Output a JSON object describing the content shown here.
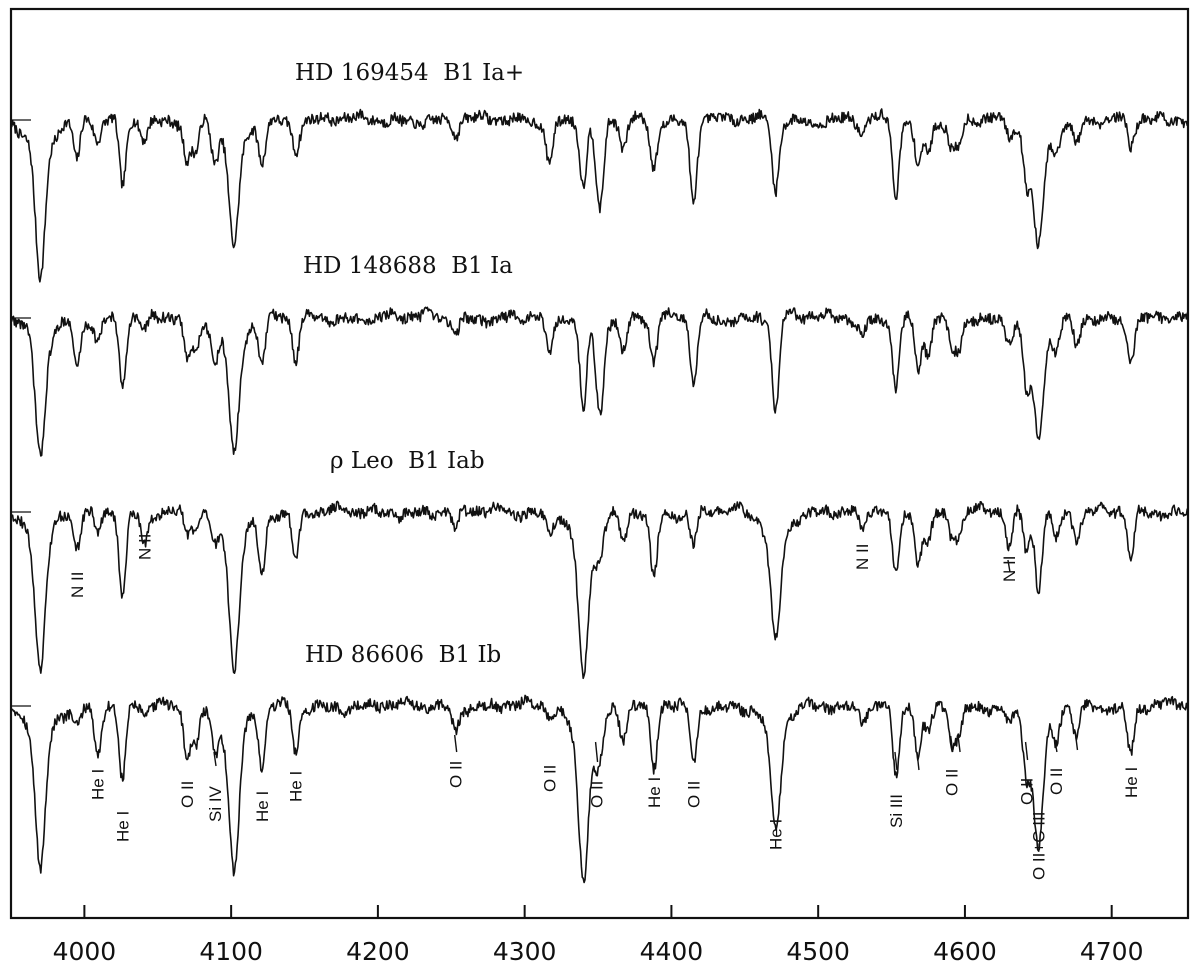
{
  "chart_data": {
    "type": "line",
    "x_unit": "wavelength (Å)",
    "xlim": [
      3950,
      4752
    ],
    "xticks": [
      4000,
      4100,
      4200,
      4300,
      4400,
      4500,
      4600,
      4700
    ],
    "xtick_labels": [
      "4000",
      "4100",
      "4200",
      "4300",
      "4400",
      "4500",
      "4600",
      "4700"
    ],
    "grid": false,
    "series": [
      {
        "name": "HD 169454  B1 Ia+"
      },
      {
        "name": "HD 148688  B1 Ia"
      },
      {
        "name": "ρ Leo  B1 Iab"
      },
      {
        "name": "HD 86606  B1 Ib"
      }
    ],
    "absorption_lines": [
      {
        "wl": 3970,
        "depth": [
          0.55,
          0.48,
          0.55,
          0.58
        ]
      },
      {
        "wl": 3995,
        "depth": [
          0.18,
          0.2,
          0.16,
          0.08
        ]
      },
      {
        "wl": 4009,
        "depth": [
          0.1,
          0.1,
          0.1,
          0.2
        ]
      },
      {
        "wl": 4026,
        "depth": [
          0.28,
          0.28,
          0.35,
          0.33
        ]
      },
      {
        "wl": 4041,
        "depth": [
          0.07,
          0.07,
          0.13,
          0.05
        ]
      },
      {
        "wl": 4070,
        "depth": [
          0.18,
          0.18,
          0.09,
          0.2
        ]
      },
      {
        "wl": 4076,
        "depth": [
          0.14,
          0.13,
          0.08,
          0.16
        ]
      },
      {
        "wl": 4089,
        "depth": [
          0.15,
          0.15,
          0.12,
          0.16
        ]
      },
      {
        "wl": 4102,
        "depth": [
          0.45,
          0.47,
          0.55,
          0.58
        ]
      },
      {
        "wl": 4121,
        "depth": [
          0.16,
          0.2,
          0.25,
          0.25
        ]
      },
      {
        "wl": 4144,
        "depth": [
          0.12,
          0.18,
          0.2,
          0.2
        ]
      },
      {
        "wl": 4253,
        "depth": [
          0.06,
          0.06,
          0.08,
          0.1
        ]
      },
      {
        "wl": 4317,
        "depth": [
          0.18,
          0.18,
          0.07,
          0.05
        ]
      },
      {
        "wl": 4340,
        "depth": [
          0.28,
          0.4,
          0.58,
          0.6
        ]
      },
      {
        "wl": 4349,
        "depth": [
          0.13,
          0.14,
          0.1,
          0.14
        ]
      },
      {
        "wl": 4352,
        "depth": [
          0.33,
          0.33,
          0.1,
          0.1
        ]
      },
      {
        "wl": 4367,
        "depth": [
          0.13,
          0.14,
          0.14,
          0.13
        ]
      },
      {
        "wl": 4388,
        "depth": [
          0.2,
          0.2,
          0.28,
          0.28
        ]
      },
      {
        "wl": 4415,
        "depth": [
          0.35,
          0.28,
          0.14,
          0.25
        ]
      },
      {
        "wl": 4471,
        "depth": [
          0.3,
          0.4,
          0.44,
          0.44
        ]
      },
      {
        "wl": 4530,
        "depth": [
          0.07,
          0.07,
          0.1,
          0.05
        ]
      },
      {
        "wl": 4553,
        "depth": [
          0.32,
          0.3,
          0.28,
          0.3
        ]
      },
      {
        "wl": 4568,
        "depth": [
          0.2,
          0.23,
          0.2,
          0.22
        ]
      },
      {
        "wl": 4575,
        "depth": [
          0.13,
          0.16,
          0.12,
          0.13
        ]
      },
      {
        "wl": 4591,
        "depth": [
          0.12,
          0.14,
          0.1,
          0.15
        ]
      },
      {
        "wl": 4596,
        "depth": [
          0.1,
          0.12,
          0.09,
          0.12
        ]
      },
      {
        "wl": 4630,
        "depth": [
          0.07,
          0.08,
          0.15,
          0.06
        ]
      },
      {
        "wl": 4642,
        "depth": [
          0.2,
          0.24,
          0.16,
          0.22
        ]
      },
      {
        "wl": 4650,
        "depth": [
          0.45,
          0.42,
          0.32,
          0.5
        ]
      },
      {
        "wl": 4662,
        "depth": [
          0.1,
          0.12,
          0.11,
          0.12
        ]
      },
      {
        "wl": 4676,
        "depth": [
          0.1,
          0.12,
          0.11,
          0.12
        ]
      },
      {
        "wl": 4713,
        "depth": [
          0.12,
          0.16,
          0.2,
          0.2
        ]
      }
    ],
    "line_ids": {
      "rho_leo": [
        {
          "wl": 3995,
          "label": "N II"
        },
        {
          "wl": 4041,
          "label": "N II"
        },
        {
          "wl": 4530,
          "label": "N II"
        },
        {
          "wl": 4630,
          "label": "N II"
        }
      ],
      "hd86606": [
        {
          "wl": 4009,
          "label": "He I"
        },
        {
          "wl": 4026,
          "label": "He I"
        },
        {
          "wl": 4070,
          "label": "O II"
        },
        {
          "wl": 4089,
          "label": "Si IV"
        },
        {
          "wl": 4121,
          "label": "He I"
        },
        {
          "wl": 4144,
          "label": "He I"
        },
        {
          "wl": 4253,
          "label": "O II"
        },
        {
          "wl": 4317,
          "label": "O II"
        },
        {
          "wl": 4349,
          "label": "O II"
        },
        {
          "wl": 4388,
          "label": "He I"
        },
        {
          "wl": 4415,
          "label": "O II"
        },
        {
          "wl": 4471,
          "label": "He I"
        },
        {
          "wl": 4553,
          "label": "Si III"
        },
        {
          "wl": 4591,
          "label": "O II"
        },
        {
          "wl": 4642,
          "label": "O II"
        },
        {
          "wl": 4650,
          "label": "O II+C III"
        },
        {
          "wl": 4662,
          "label": "O II"
        },
        {
          "wl": 4713,
          "label": "He I"
        }
      ]
    }
  }
}
